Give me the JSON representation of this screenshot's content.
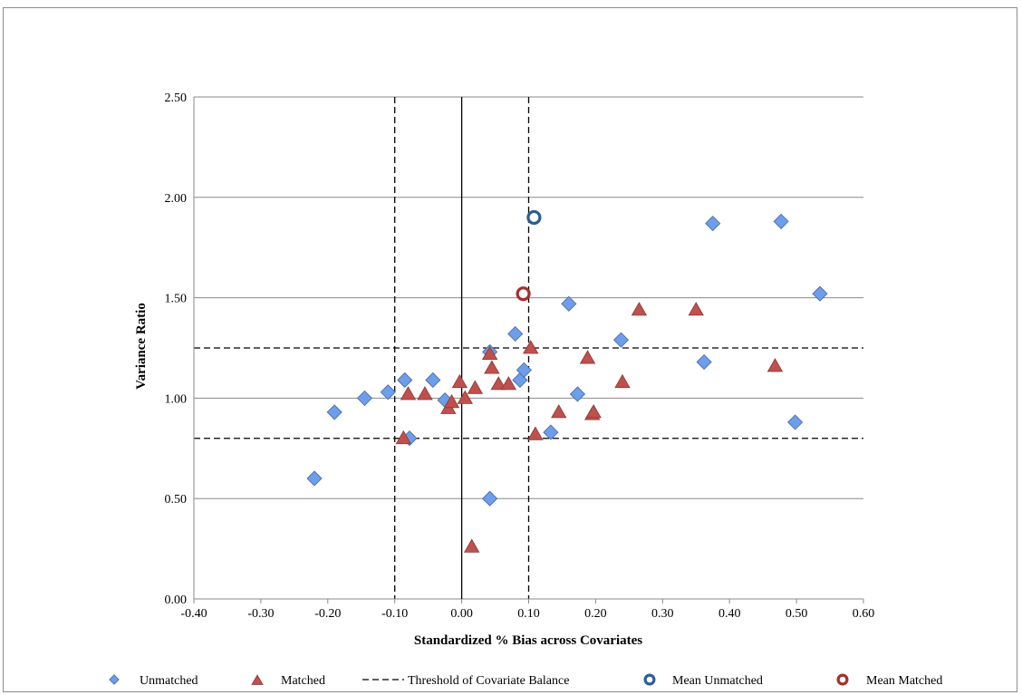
{
  "chart_data": {
    "type": "scatter",
    "xlabel": "Standardized % Bias across Covariates",
    "ylabel": "Variance Ratio",
    "xlim": [
      -0.4,
      0.6
    ],
    "ylim": [
      0.0,
      2.5
    ],
    "x_ticks": [
      "-0.40",
      "-0.30",
      "-0.20",
      "-0.10",
      "0.00",
      "0.10",
      "0.20",
      "0.30",
      "0.40",
      "0.50",
      "0.60"
    ],
    "y_ticks": [
      "0.00",
      "0.50",
      "1.00",
      "1.50",
      "2.00",
      "2.50"
    ],
    "grid": "horizontal",
    "legend_position": "bottom",
    "thresholds": {
      "name": "Threshold of Covariate Balance",
      "x": [
        -0.1,
        0.1
      ],
      "y": [
        0.8,
        1.25
      ],
      "style": "dashed",
      "color": "#000000"
    },
    "series": [
      {
        "name": "Unmatched",
        "marker": "diamond",
        "color": "#6d9eeb",
        "points": [
          [
            -0.22,
            0.6
          ],
          [
            -0.19,
            0.93
          ],
          [
            -0.145,
            1.0
          ],
          [
            -0.11,
            1.03
          ],
          [
            -0.085,
            1.09
          ],
          [
            -0.078,
            0.8
          ],
          [
            -0.043,
            1.09
          ],
          [
            -0.025,
            0.99
          ],
          [
            0.042,
            1.23
          ],
          [
            0.042,
            0.5
          ],
          [
            0.08,
            1.32
          ],
          [
            0.087,
            1.09
          ],
          [
            0.093,
            1.14
          ],
          [
            0.133,
            0.83
          ],
          [
            0.16,
            1.47
          ],
          [
            0.173,
            1.02
          ],
          [
            0.238,
            1.29
          ],
          [
            0.362,
            1.18
          ],
          [
            0.375,
            1.87
          ],
          [
            0.477,
            1.88
          ],
          [
            0.498,
            0.88
          ],
          [
            0.535,
            1.52
          ]
        ]
      },
      {
        "name": "Matched",
        "marker": "triangle",
        "color": "#c0504d",
        "points": [
          [
            -0.087,
            0.8
          ],
          [
            -0.08,
            1.02
          ],
          [
            -0.055,
            1.02
          ],
          [
            -0.02,
            0.95
          ],
          [
            -0.015,
            0.98
          ],
          [
            -0.003,
            1.08
          ],
          [
            0.005,
            1.0
          ],
          [
            0.015,
            0.26
          ],
          [
            0.02,
            1.05
          ],
          [
            0.042,
            1.22
          ],
          [
            0.045,
            1.15
          ],
          [
            0.055,
            1.07
          ],
          [
            0.07,
            1.07
          ],
          [
            0.103,
            1.25
          ],
          [
            0.11,
            0.82
          ],
          [
            0.145,
            0.93
          ],
          [
            0.188,
            1.2
          ],
          [
            0.195,
            0.92
          ],
          [
            0.197,
            0.93
          ],
          [
            0.24,
            1.08
          ],
          [
            0.265,
            1.44
          ],
          [
            0.35,
            1.44
          ],
          [
            0.468,
            1.16
          ]
        ]
      },
      {
        "name": "Mean Unmatched",
        "marker": "ring",
        "color": "#2a5f95",
        "points": [
          [
            0.108,
            1.9
          ]
        ]
      },
      {
        "name": "Mean Matched",
        "marker": "ring",
        "color": "#a3302e",
        "points": [
          [
            0.092,
            1.52
          ]
        ]
      }
    ]
  }
}
